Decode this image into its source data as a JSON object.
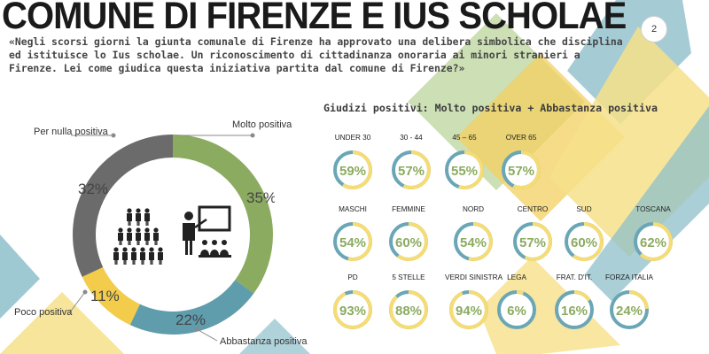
{
  "header": {
    "title": "COMUNE DI FIRENZE E IUS SCHOLAE",
    "page_number": "2",
    "question": "«Negli scorsi giorni la giunta comunale di Firenze ha approvato una delibera simbolica che disciplina ed istituisce lo Ius scholae. Un riconoscimento di cittadinanza onoraria ai minori stranieri a Firenze. Lei come giudica questa iniziativa partita dal comune di Firenze?»"
  },
  "colors": {
    "green": "#8bab60",
    "teal": "#5f9dad",
    "yellow": "#f2cc4a",
    "gray": "#6b6b6b",
    "track_yellow": "#f6dc72",
    "track_teal": "#6aa6b6",
    "bg_yellow": "#f6e08a",
    "bg_teal": "#8ebfca",
    "bg_green": "#c4d9a8"
  },
  "icon_name": "classroom-teacher-students-icon",
  "chart_data": [
    {
      "type": "pie",
      "title": "",
      "categories": [
        "Molto positiva",
        "Abbastanza positiva",
        "Poco positiva",
        "Per nulla positiva"
      ],
      "values": [
        35,
        22,
        11,
        32
      ],
      "value_labels": [
        "35%",
        "22%",
        "11%",
        "32%"
      ],
      "colors": [
        "#8bab60",
        "#5f9dad",
        "#f2cc4a",
        "#6b6b6b"
      ]
    },
    {
      "type": "bar",
      "title": "Giudizi positivi: Molto positiva + Abbastanza positiva",
      "ylim": [
        0,
        100
      ],
      "rows": [
        {
          "categories": [
            "UNDER 30",
            "30 - 44",
            "45 – 65",
            "OVER 65"
          ],
          "values": [
            59,
            57,
            55,
            57
          ],
          "value_labels": [
            "59%",
            "57%",
            "55%",
            "57%"
          ]
        },
        {
          "categories": [
            "MASCHI",
            "FEMMINE",
            "NORD",
            "CENTRO",
            "SUD",
            "TOSCANA"
          ],
          "values": [
            54,
            60,
            54,
            57,
            60,
            62
          ],
          "value_labels": [
            "54%",
            "60%",
            "54%",
            "57%",
            "60%",
            "62%"
          ]
        },
        {
          "categories": [
            "PD",
            "5 STELLE",
            "VERDI SINISTRA",
            "LEGA",
            "FRAT. D'IT.",
            "FORZA ITALIA"
          ],
          "values": [
            93,
            88,
            94,
            6,
            16,
            24
          ],
          "value_labels": [
            "93%",
            "88%",
            "94%",
            "6%",
            "16%",
            "24%"
          ]
        }
      ]
    }
  ]
}
